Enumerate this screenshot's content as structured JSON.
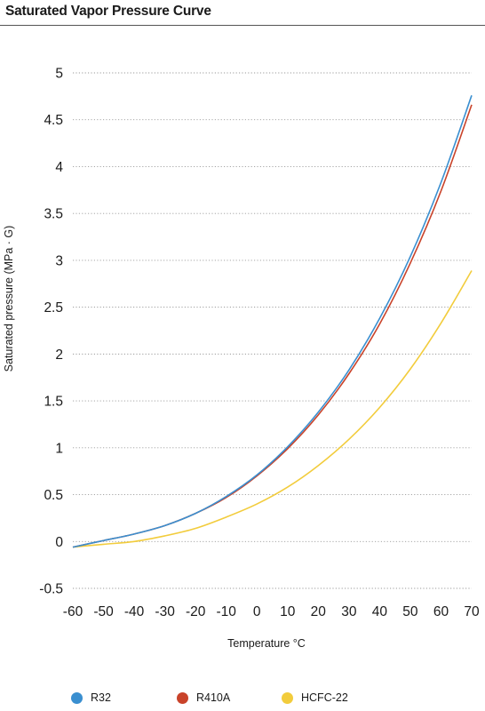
{
  "page": {
    "title": "Saturated Vapor Pressure Curve"
  },
  "chart_data": {
    "type": "line",
    "xlabel": "Temperature °C",
    "ylabel": "Saturated pressure (MPa · G)",
    "xlim": [
      -60,
      70
    ],
    "ylim": [
      -0.5,
      5
    ],
    "x_ticks": [
      "-60",
      "-50",
      "-40",
      "-30",
      "-20",
      "-10",
      "0",
      "10",
      "20",
      "30",
      "40",
      "50",
      "60",
      "70"
    ],
    "y_ticks": [
      "5",
      "4.5",
      "4",
      "3.5",
      "3",
      "2.5",
      "2",
      "1.5",
      "1",
      "0.5",
      "0",
      "-0.5"
    ],
    "grid": "horizontal dotted",
    "legend_position": "bottom",
    "x": [
      -60,
      -50,
      -40,
      -30,
      -20,
      -10,
      0,
      10,
      20,
      30,
      40,
      50,
      60,
      70
    ],
    "series": [
      {
        "name": "R32",
        "color": "#3a8fd0",
        "values": [
          -0.06,
          0.01,
          0.08,
          0.17,
          0.3,
          0.48,
          0.71,
          1.01,
          1.38,
          1.83,
          2.38,
          3.04,
          3.83,
          4.76
        ]
      },
      {
        "name": "R410A",
        "color": "#c9432a",
        "values": [
          -0.06,
          0.01,
          0.08,
          0.17,
          0.3,
          0.47,
          0.7,
          0.99,
          1.35,
          1.79,
          2.32,
          2.97,
          3.74,
          4.66
        ]
      },
      {
        "name": "HCFC-22",
        "color": "#f2cc3c",
        "values": [
          -0.06,
          -0.03,
          0.0,
          0.06,
          0.14,
          0.26,
          0.4,
          0.58,
          0.81,
          1.09,
          1.43,
          1.84,
          2.33,
          2.89
        ]
      }
    ]
  }
}
